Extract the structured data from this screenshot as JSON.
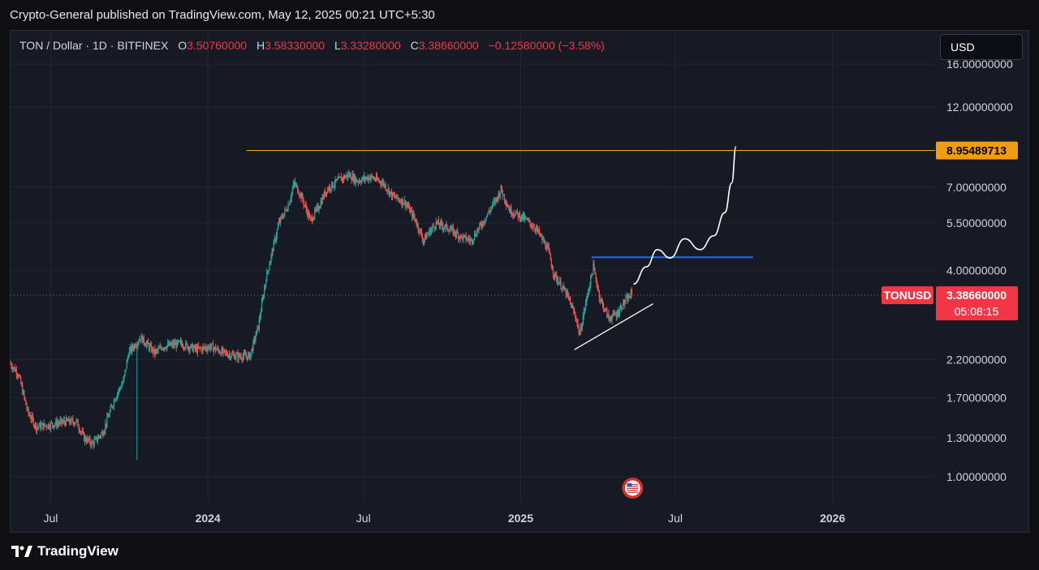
{
  "header": {
    "published_text": "Crypto-General published on TradingView.com, May 12, 2025 00:21 UTC+5:30"
  },
  "legend": {
    "symbol": "TON / Dollar · 1D · BITFINEX",
    "open_label": "O",
    "open": "3.50760000",
    "high_label": "H",
    "high": "3.58330000",
    "low_label": "L",
    "low": "3.33280000",
    "close_label": "C",
    "close": "3.38660000",
    "change": "−0.12580000 (−3.58%)"
  },
  "currency_button": "USD",
  "colors": {
    "up": "#26a69a",
    "down": "#ef5350",
    "resistance": "#f39c12",
    "level": "#2962ff",
    "price_badge": "#f23645",
    "background": "#161a25"
  },
  "chart_data": {
    "type": "candlestick",
    "title": "",
    "scale": "log",
    "y_range": [
      0.85,
      20
    ],
    "x_range": [
      "2023-05-15",
      "2026-05-01"
    ],
    "grid": true,
    "y_tick_labels": [
      {
        "value": 16,
        "label": "16.00000000"
      },
      {
        "value": 12,
        "label": "12.00000000"
      },
      {
        "value": 7,
        "label": "7.00000000"
      },
      {
        "value": 5.5,
        "label": "5.50000000"
      },
      {
        "value": 4,
        "label": "4.00000000"
      },
      {
        "value": 2.2,
        "label": "2.20000000"
      },
      {
        "value": 1.7,
        "label": "1.70000000"
      },
      {
        "value": 1.3,
        "label": "1.30000000"
      },
      {
        "value": 1,
        "label": "1.00000000"
      }
    ],
    "x_tick_labels": [
      {
        "date": "2023-07-01",
        "label": "Jul",
        "bold": false
      },
      {
        "date": "2024-01-01",
        "label": "2024",
        "bold": true
      },
      {
        "date": "2024-07-01",
        "label": "Jul",
        "bold": false
      },
      {
        "date": "2025-01-01",
        "label": "2025",
        "bold": true
      },
      {
        "date": "2025-07-01",
        "label": "Jul",
        "bold": false
      },
      {
        "date": "2026-01-01",
        "label": "2026",
        "bold": true
      }
    ],
    "price_path": [
      [
        "2023-05-15",
        2.15
      ],
      [
        "2023-05-25",
        2.0
      ],
      [
        "2023-06-05",
        1.55
      ],
      [
        "2023-06-15",
        1.4
      ],
      [
        "2023-07-01",
        1.42
      ],
      [
        "2023-07-20",
        1.45
      ],
      [
        "2023-08-01",
        1.45
      ],
      [
        "2023-08-10",
        1.3
      ],
      [
        "2023-08-20",
        1.25
      ],
      [
        "2023-09-01",
        1.35
      ],
      [
        "2023-09-15",
        1.7
      ],
      [
        "2023-09-25",
        1.9
      ],
      [
        "2023-10-01",
        2.3
      ],
      [
        "2023-10-15",
        2.55
      ],
      [
        "2023-11-01",
        2.3
      ],
      [
        "2023-11-10",
        2.4
      ],
      [
        "2023-12-01",
        2.45
      ],
      [
        "2023-12-20",
        2.35
      ],
      [
        "2024-01-05",
        2.4
      ],
      [
        "2024-01-20",
        2.3
      ],
      [
        "2024-02-05",
        2.25
      ],
      [
        "2024-02-20",
        2.25
      ],
      [
        "2024-03-01",
        2.75
      ],
      [
        "2024-03-10",
        3.8
      ],
      [
        "2024-03-25",
        5.5
      ],
      [
        "2024-04-05",
        6.2
      ],
      [
        "2024-04-12",
        7.2
      ],
      [
        "2024-04-20",
        6.6
      ],
      [
        "2024-05-01",
        5.6
      ],
      [
        "2024-05-10",
        6.1
      ],
      [
        "2024-05-20",
        6.9
      ],
      [
        "2024-06-05",
        7.4
      ],
      [
        "2024-06-15",
        7.6
      ],
      [
        "2024-06-25",
        7.3
      ],
      [
        "2024-07-10",
        7.5
      ],
      [
        "2024-07-25",
        7.2
      ],
      [
        "2024-08-05",
        6.6
      ],
      [
        "2024-08-20",
        6.3
      ],
      [
        "2024-09-01",
        5.6
      ],
      [
        "2024-09-10",
        4.9
      ],
      [
        "2024-09-25",
        5.5
      ],
      [
        "2024-10-10",
        5.3
      ],
      [
        "2024-10-25",
        5.0
      ],
      [
        "2024-11-05",
        4.9
      ],
      [
        "2024-11-20",
        5.6
      ],
      [
        "2024-12-05",
        6.5
      ],
      [
        "2024-12-10",
        6.9
      ],
      [
        "2024-12-20",
        6.0
      ],
      [
        "2025-01-05",
        5.7
      ],
      [
        "2025-01-20",
        5.3
      ],
      [
        "2025-02-03",
        4.6
      ],
      [
        "2025-02-10",
        3.9
      ],
      [
        "2025-02-25",
        3.4
      ],
      [
        "2025-03-08",
        2.9
      ],
      [
        "2025-03-12",
        2.6
      ],
      [
        "2025-03-20",
        3.3
      ],
      [
        "2025-03-28",
        4.1
      ],
      [
        "2025-04-05",
        3.3
      ],
      [
        "2025-04-15",
        2.9
      ],
      [
        "2025-04-25",
        3.0
      ],
      [
        "2025-05-02",
        3.2
      ],
      [
        "2025-05-11",
        3.39
      ]
    ],
    "spike_wick": {
      "date": "2023-10-10",
      "low": 1.12
    },
    "last_candle": {
      "open": 3.5076,
      "high": 3.5833,
      "low": 3.3328,
      "close": 3.3866
    },
    "annotations": {
      "resistance_line": {
        "from": "2024-02-15",
        "to": "2026-05-01",
        "value": 8.95489713,
        "label": "8.95489713"
      },
      "level_line": {
        "from": "2025-03-25",
        "to": "2025-09-30",
        "value": 4.37
      },
      "trend_line": {
        "from": [
          "2025-03-05",
          2.35
        ],
        "to": [
          "2025-06-05",
          3.2
        ]
      },
      "projection": [
        [
          "2025-05-13",
          3.65
        ],
        [
          "2025-05-28",
          4.1
        ],
        [
          "2025-06-10",
          4.6
        ],
        [
          "2025-06-25",
          4.35
        ],
        [
          "2025-07-12",
          4.95
        ],
        [
          "2025-07-30",
          4.6
        ],
        [
          "2025-08-15",
          5.05
        ],
        [
          "2025-08-28",
          5.9
        ],
        [
          "2025-09-05",
          7.2
        ],
        [
          "2025-09-10",
          9.2
        ]
      ],
      "last_price_line": 3.3866
    },
    "symbol_tag": "TONUSD",
    "price_label": "3.38660000",
    "countdown": "05:08:15"
  },
  "footer": {
    "brand": "TradingView"
  }
}
